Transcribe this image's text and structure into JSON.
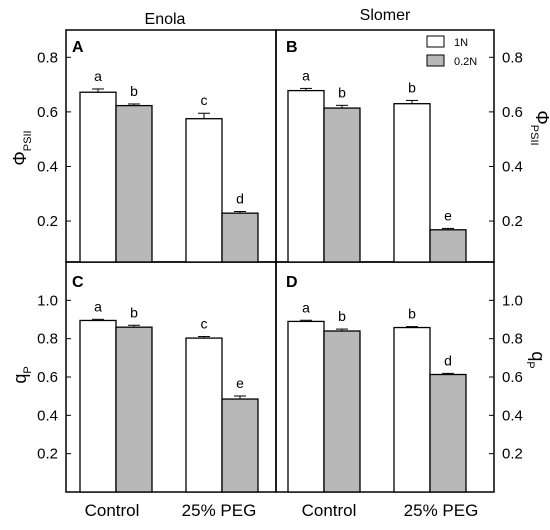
{
  "columns": [
    "Enola",
    "Slomer"
  ],
  "legend": [
    {
      "label": "1N",
      "color": "#ffffff"
    },
    {
      "label": "0.2N",
      "color": "#b8b8b8"
    }
  ],
  "categories": [
    "Control",
    "25% PEG"
  ],
  "rows": [
    {
      "ylabel_main": "Φ",
      "ylabel_sub": "PSII"
    },
    {
      "ylabel_main": "q",
      "ylabel_sub": "P"
    }
  ],
  "chart_data": [
    {
      "type": "bar",
      "panel": "A",
      "column_title": "Enola",
      "categories": [
        "Control",
        "25% PEG"
      ],
      "series": [
        {
          "name": "1N",
          "values": [
            0.672,
            0.575
          ],
          "errors": [
            0.012,
            0.02
          ],
          "letters": [
            "a",
            "c"
          ]
        },
        {
          "name": "0.2N",
          "values": [
            0.623,
            0.229
          ],
          "errors": [
            0.006,
            0.006
          ],
          "letters": [
            "b",
            "d"
          ]
        }
      ],
      "ylim": [
        0.05,
        0.9
      ],
      "yticks": [
        "0.2",
        "0.4",
        "0.6",
        "0.8"
      ],
      "ylabel": "ΦPSII",
      "legend": "top-right"
    },
    {
      "type": "bar",
      "panel": "B",
      "column_title": "Slomer",
      "categories": [
        "Control",
        "25% PEG"
      ],
      "series": [
        {
          "name": "1N",
          "values": [
            0.678,
            0.63
          ],
          "errors": [
            0.008,
            0.012
          ],
          "letters": [
            "a",
            "b"
          ]
        },
        {
          "name": "0.2N",
          "values": [
            0.614,
            0.168
          ],
          "errors": [
            0.01,
            0.005
          ],
          "letters": [
            "b",
            "e"
          ]
        }
      ],
      "ylim": [
        0.05,
        0.9
      ],
      "yticks": [
        "0.2",
        "0.4",
        "0.6",
        "0.8"
      ],
      "ylabel": "ΦPSII",
      "legend": "top-right"
    },
    {
      "type": "bar",
      "panel": "C",
      "column_title": "Enola",
      "categories": [
        "Control",
        "25% PEG"
      ],
      "series": [
        {
          "name": "1N",
          "values": [
            0.895,
            0.803
          ],
          "errors": [
            0.006,
            0.008
          ],
          "letters": [
            "a",
            "c"
          ]
        },
        {
          "name": "0.2N",
          "values": [
            0.86,
            0.485
          ],
          "errors": [
            0.01,
            0.016
          ],
          "letters": [
            "b",
            "e"
          ]
        }
      ],
      "ylim": [
        0.0,
        1.2
      ],
      "yticks": [
        "0.2",
        "0.4",
        "0.6",
        "0.8",
        "1.0"
      ],
      "ylabel": "qP"
    },
    {
      "type": "bar",
      "panel": "D",
      "column_title": "Slomer",
      "categories": [
        "Control",
        "25% PEG"
      ],
      "series": [
        {
          "name": "1N",
          "values": [
            0.89,
            0.858
          ],
          "errors": [
            0.006,
            0.005
          ],
          "letters": [
            "a",
            "b"
          ]
        },
        {
          "name": "0.2N",
          "values": [
            0.84,
            0.613
          ],
          "errors": [
            0.01,
            0.006
          ],
          "letters": [
            "b",
            "d"
          ]
        }
      ],
      "ylim": [
        0.0,
        1.2
      ],
      "yticks": [
        "0.2",
        "0.4",
        "0.6",
        "0.8",
        "1.0"
      ],
      "ylabel": "qP"
    }
  ]
}
